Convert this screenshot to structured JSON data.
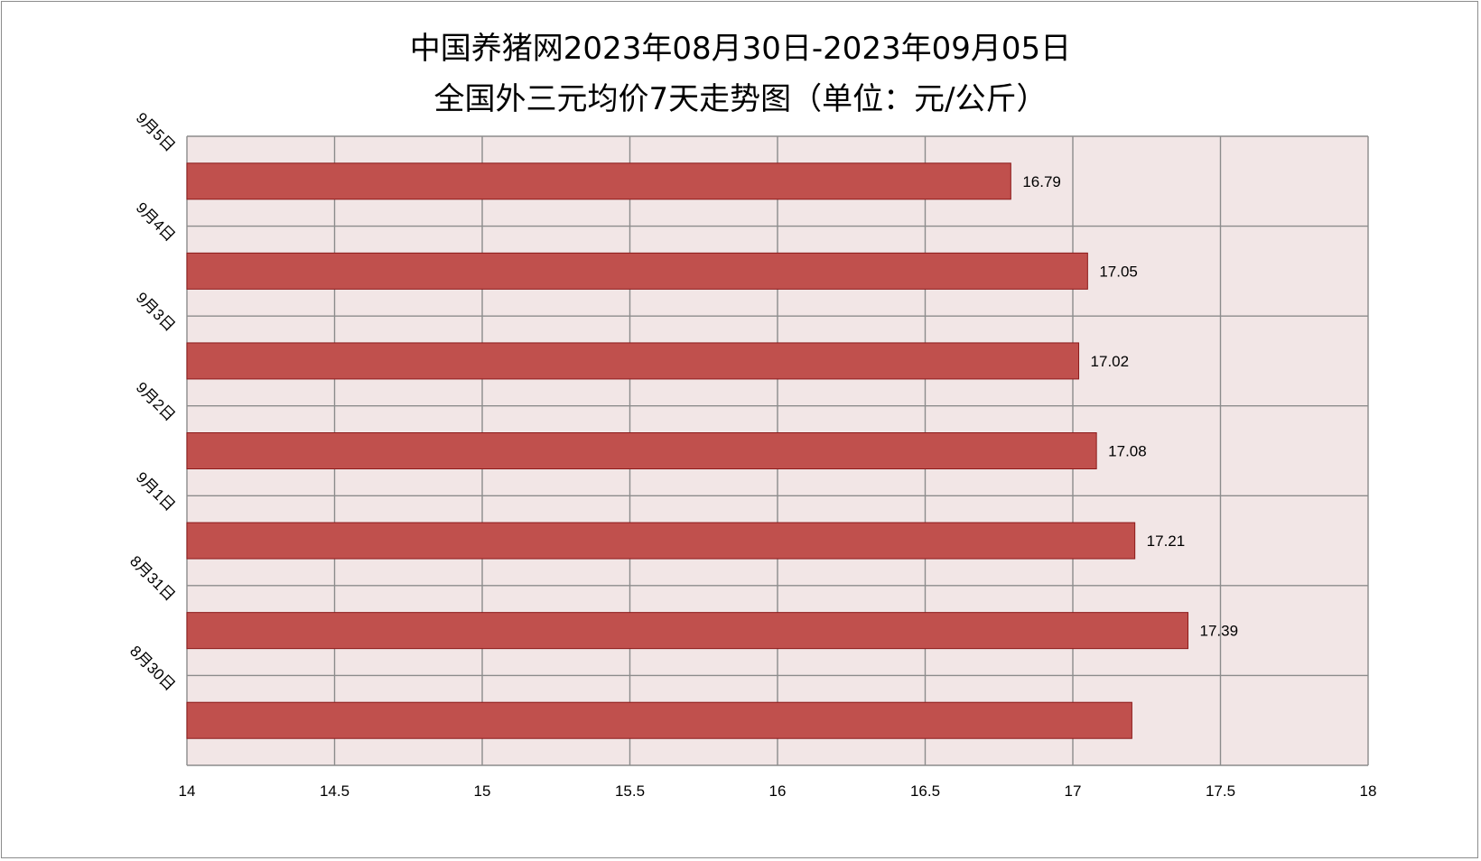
{
  "chart_data": {
    "type": "bar",
    "orientation": "horizontal",
    "title_lines": [
      "中国养猪网2023年08月30日-2023年09月05日",
      "全国外三元均价7天走势图（单位：元/公斤）"
    ],
    "categories": [
      "9月5日",
      "9月4日",
      "9月3日",
      "9月2日",
      "9月1日",
      "8月31日",
      "8月30日"
    ],
    "values": [
      16.79,
      17.05,
      17.02,
      17.08,
      17.21,
      17.39,
      17.2
    ],
    "data_labels": [
      "16.79",
      "17.05",
      "17.02",
      "17.08",
      "17.21",
      "17.39",
      ""
    ],
    "x_ticks": [
      "14",
      "14.5",
      "15",
      "15.5",
      "16",
      "16.5",
      "17",
      "17.5",
      "18"
    ],
    "xlim": [
      14,
      18
    ],
    "grid": true,
    "legend": "none",
    "colors": {
      "bar": "#c0504d",
      "bar_border": "#8b1a1a",
      "plot_bg": "#f2e6e6",
      "grid": "#8c8c8c"
    }
  }
}
